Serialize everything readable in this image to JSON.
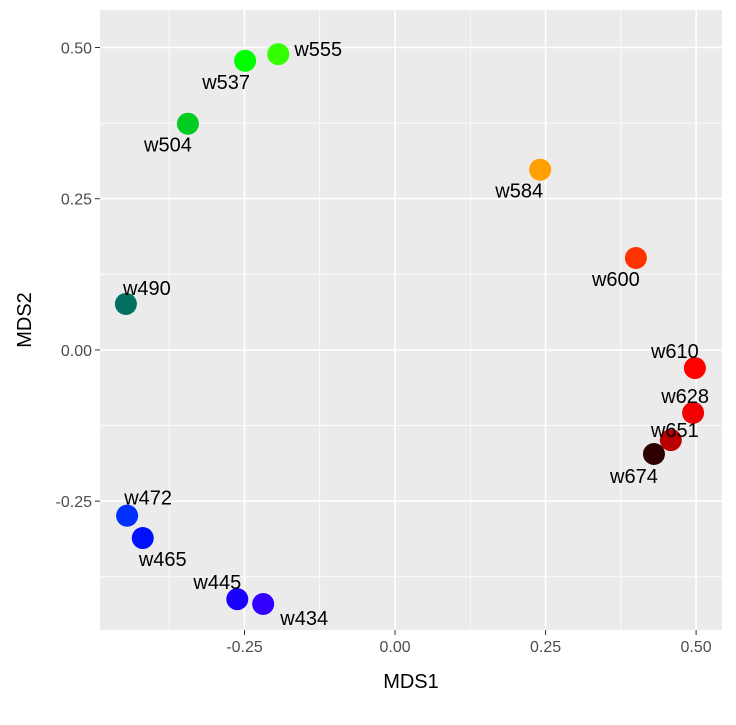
{
  "chart_data": {
    "type": "scatter",
    "title": "",
    "xlabel": "MDS1",
    "ylabel": "MDS2",
    "xlim": [
      -0.49,
      0.543
    ],
    "ylim": [
      -0.463,
      0.562
    ],
    "grid": true,
    "xticks": [
      -0.25,
      0.0,
      0.25,
      0.5
    ],
    "xtick_labels": [
      "-0.25",
      "0.00",
      "0.25",
      "0.50"
    ],
    "yticks": [
      -0.25,
      0.0,
      0.25,
      0.5
    ],
    "ytick_labels": [
      "-0.25",
      "0.00",
      "0.25",
      "0.50"
    ],
    "points": [
      {
        "label": "w555",
        "x": -0.194,
        "y": 0.489,
        "color": "#33ff00"
      },
      {
        "label": "w537",
        "x": -0.249,
        "y": 0.478,
        "color": "#00ff00"
      },
      {
        "label": "w504",
        "x": -0.344,
        "y": 0.374,
        "color": "#00cc22"
      },
      {
        "label": "w490",
        "x": -0.447,
        "y": 0.076,
        "color": "#007060"
      },
      {
        "label": "w584",
        "x": 0.241,
        "y": 0.298,
        "color": "#ffa000"
      },
      {
        "label": "w600",
        "x": 0.4,
        "y": 0.152,
        "color": "#ff3300"
      },
      {
        "label": "w610",
        "x": 0.498,
        "y": -0.03,
        "color": "#ff0000"
      },
      {
        "label": "w628",
        "x": 0.495,
        "y": -0.104,
        "color": "#f00000"
      },
      {
        "label": "w651",
        "x": 0.458,
        "y": -0.149,
        "color": "#bb0000"
      },
      {
        "label": "w674",
        "x": 0.43,
        "y": -0.172,
        "color": "#2e0000"
      },
      {
        "label": "w472",
        "x": -0.445,
        "y": -0.274,
        "color": "#0030ff"
      },
      {
        "label": "w465",
        "x": -0.419,
        "y": -0.311,
        "color": "#0010ff"
      },
      {
        "label": "w445",
        "x": -0.262,
        "y": -0.412,
        "color": "#1a00ff"
      },
      {
        "label": "w434",
        "x": -0.219,
        "y": -0.42,
        "color": "#3300ff"
      }
    ]
  }
}
